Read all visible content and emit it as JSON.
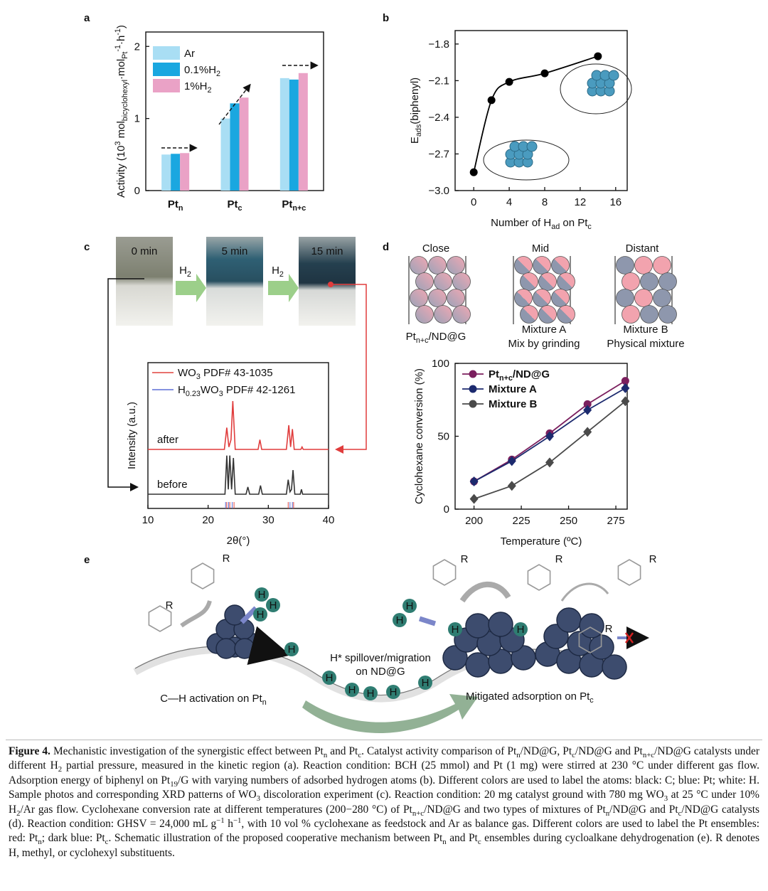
{
  "panel_labels": [
    "a",
    "b",
    "c",
    "d",
    "e"
  ],
  "chart_data": [
    {
      "type": "bar",
      "ylabel": [
        "Activity (10",
        {
          "sup": "3"
        },
        " mol",
        {
          "sub": "bicyclohexyl"
        },
        "·mol",
        {
          "sub": "Pt"
        },
        {
          "sup": "-1"
        },
        "·h",
        {
          "sup": "-1"
        },
        ")"
      ],
      "categories": [
        [
          "Pt",
          {
            "sub": "n"
          }
        ],
        [
          "Pt",
          {
            "sub": "c"
          }
        ],
        [
          "Pt",
          {
            "sub": "n+c"
          }
        ]
      ],
      "series": [
        {
          "name": "Ar",
          "color": "#a9def4",
          "values": [
            0.5,
            1.0,
            1.56
          ]
        },
        {
          "name": [
            "0.1%H",
            {
              "sub": "2"
            }
          ],
          "color": "#1aa7e0",
          "values": [
            0.51,
            1.21,
            1.54
          ]
        },
        {
          "name": [
            "1%H",
            {
              "sub": "2"
            }
          ],
          "color": "#eaa2c6",
          "values": [
            0.52,
            1.29,
            1.63
          ]
        }
      ],
      "ylim": [
        0,
        2.2
      ],
      "yticks": [
        0,
        1,
        2
      ],
      "legend": "upper left"
    },
    {
      "type": "line",
      "x": [
        0,
        2,
        4,
        8,
        14
      ],
      "values": [
        -2.85,
        -2.26,
        -2.11,
        -2.04,
        -1.9
      ],
      "color": "#000000",
      "marker": "circle",
      "xlim": [
        -2.1,
        17.3
      ],
      "ylim": [
        -3.0,
        -1.69
      ],
      "xticks": [
        0,
        4,
        8,
        12,
        16
      ],
      "yticks": [
        {
          "value": -1.8,
          "label": "−1.8"
        },
        {
          "value": -2.1,
          "label": "−2.1"
        },
        {
          "value": -2.4,
          "label": "−2.4"
        },
        {
          "value": -2.7,
          "label": "−2.7"
        },
        {
          "value": -3.0,
          "label": "−3.0"
        }
      ],
      "xlabel": [
        "Number of H",
        {
          "sub": "ad"
        },
        " on Pt",
        {
          "sub": "c"
        }
      ],
      "ylabel": [
        "E",
        {
          "sub": "ads"
        },
        "(biphenyl)"
      ]
    },
    {
      "type": "xrd",
      "xlim": [
        10,
        40
      ],
      "xticks": [
        10,
        20,
        30,
        40
      ],
      "xlabel": "2θ(°)",
      "ylabel": "Intensity (a.u.)",
      "series": [
        {
          "name": [
            "WO",
            {
              "sub": "3"
            },
            " PDF# 43-1035"
          ],
          "color": "#e0443f",
          "x": [
            23.1,
            23.6,
            24.3,
            33.3,
            34.2
          ]
        },
        {
          "name": [
            "H",
            {
              "sub": "0.23"
            },
            "WO",
            {
              "sub": "3"
            },
            " PDF# 42-1261"
          ],
          "color": "#5b6fd6",
          "x": [
            22.9,
            23.4,
            24.0,
            33.6,
            34.0
          ]
        }
      ],
      "traces": [
        {
          "label": "after",
          "color": "#e03c3c",
          "x": [
            10,
            22.7,
            23.1,
            23.45,
            23.8,
            24.1,
            24.5,
            28.3,
            28.6,
            28.9,
            33.0,
            33.4,
            33.7,
            34.0,
            34.3,
            35.4,
            35.6,
            35.8,
            40
          ],
          "values": [
            0,
            0,
            0.45,
            0.05,
            0.2,
            1,
            0,
            0,
            0.2,
            0,
            0,
            0.5,
            0.05,
            0.42,
            0,
            0,
            0.05,
            0,
            0
          ]
        },
        {
          "label": "before",
          "color": "#333333",
          "x": [
            10,
            22.8,
            23.1,
            23.35,
            23.6,
            23.9,
            24.2,
            24.5,
            26.3,
            26.6,
            26.9,
            28.4,
            28.7,
            29.0,
            33.0,
            33.3,
            33.6,
            33.85,
            34.1,
            34.4,
            35.3,
            35.5,
            35.7,
            40
          ],
          "values": [
            0,
            0,
            0.8,
            0.1,
            0.8,
            0.1,
            0.75,
            0,
            0,
            0.15,
            0,
            0,
            0.18,
            0,
            0,
            0.3,
            0.05,
            0.1,
            0.5,
            0,
            0,
            0.1,
            0,
            0
          ]
        }
      ]
    },
    {
      "type": "line",
      "x": [
        200,
        220,
        240,
        260,
        280
      ],
      "series": [
        {
          "name": [
            "Pt",
            {
              "sub": "n+c"
            },
            "/ND@G"
          ],
          "color": "#7b1f5e",
          "marker": "circle",
          "values": [
            19,
            34,
            52,
            72,
            88
          ]
        },
        {
          "name": "Mixture A",
          "color": "#1c2a6e",
          "marker": "diamond",
          "values": [
            19,
            33,
            50,
            68,
            83
          ]
        },
        {
          "name": "Mixture B",
          "color": "#4a4a4a",
          "marker": "diamond",
          "values": [
            7,
            16,
            32,
            53,
            74
          ]
        }
      ],
      "xlim": [
        190,
        281
      ],
      "ylim": [
        0,
        100
      ],
      "xticks": [
        200,
        225,
        250,
        275
      ],
      "yticks": [
        0,
        50,
        100
      ],
      "xlabel": "Temperature (ºC)",
      "ylabel": "Cyclohexane conversion (%)",
      "legend": "upper left"
    }
  ],
  "panel_c": {
    "photos": [
      "0 min",
      "5 min",
      "15 min"
    ],
    "arrows": [
      [
        "H",
        {
          "sub": "2"
        }
      ],
      [
        "H",
        {
          "sub": "2"
        }
      ]
    ]
  },
  "panel_d": {
    "columns": [
      {
        "title": "Close",
        "labels": [
          [
            "Pt",
            {
              "sub": "n+c"
            },
            "/ND@G"
          ]
        ]
      },
      {
        "title": "Mid",
        "labels": [
          "Mixture A",
          "Mix by grinding"
        ]
      },
      {
        "title": "Distant",
        "labels": [
          "Mixture B",
          "Physical mixture"
        ]
      }
    ]
  },
  "panel_e": {
    "labels": [
      [
        "C—H activation on Pt",
        {
          "sub": "n"
        }
      ],
      "H* spillover/migration",
      "on ND@G",
      [
        "Mitigated adsorption on Pt",
        {
          "sub": "c"
        }
      ]
    ],
    "h_atoms": [
      "H",
      "H",
      "H",
      "H",
      "H",
      "H",
      "H",
      "H",
      "H",
      "H",
      "H",
      "H",
      "H"
    ],
    "r_labels": [
      "R",
      "R",
      "R",
      "R",
      "R",
      "R"
    ]
  },
  "caption": {
    "label": "Figure 4.",
    "segments": [
      "Mechanistic investigation of the synergistic effect between Pt",
      {
        "sub": "n"
      },
      " and Pt",
      {
        "sub": "c"
      },
      ". Catalyst activity comparison of Pt",
      {
        "sub": "n"
      },
      "/ND@G, Pt",
      {
        "sub": "c"
      },
      "/ND@G and Pt",
      {
        "sub": "n+c"
      },
      "/ND@G catalysts under different H",
      {
        "sub": "2"
      },
      " partial pressure, measured in the kinetic region (a). Reaction condition: BCH (25 mmol) and Pt (1 mg) were stirred at 230 °C under different gas flow. Adsorption energy of biphenyl on Pt",
      {
        "sub": "19"
      },
      "/G with varying numbers of adsorbed hydrogen atoms (b). Different colors are used to label the atoms: black: C; blue: Pt; white: H. Sample photos and corresponding XRD patterns of WO",
      {
        "sub": "3"
      },
      " discoloration experiment (c). Reaction condition: 20 mg catalyst ground with 780 mg WO",
      {
        "sub": "3"
      },
      " at 25 °C under 10% H",
      {
        "sub": "2"
      },
      "/Ar gas flow. Cyclohexane conversion rate at different temperatures (200−280 °C) of Pt",
      {
        "sub": "n+c"
      },
      "/ND@G and two types of mixtures of Pt",
      {
        "sub": "n"
      },
      "/ND@G and Pt",
      {
        "sub": "c"
      },
      "/ND@G catalysts (d). Reaction condition: GHSV = 24,000 mL g",
      {
        "sup": "−1"
      },
      " h",
      {
        "sup": "−1"
      },
      ", with 10 vol % cyclohexane as feedstock and Ar as balance gas. Different colors are used to label the Pt ensembles: red: Pt",
      {
        "sub": "n"
      },
      "; dark blue: Pt",
      {
        "sub": "c"
      },
      ". Schematic illustration of the proposed cooperative mechanism between Pt",
      {
        "sub": "n"
      },
      " and Pt",
      {
        "sub": "c"
      },
      " ensembles during cycloalkane dehydrogenation (e). R denotes H, methyl, or cyclohexyl substituents."
    ]
  }
}
